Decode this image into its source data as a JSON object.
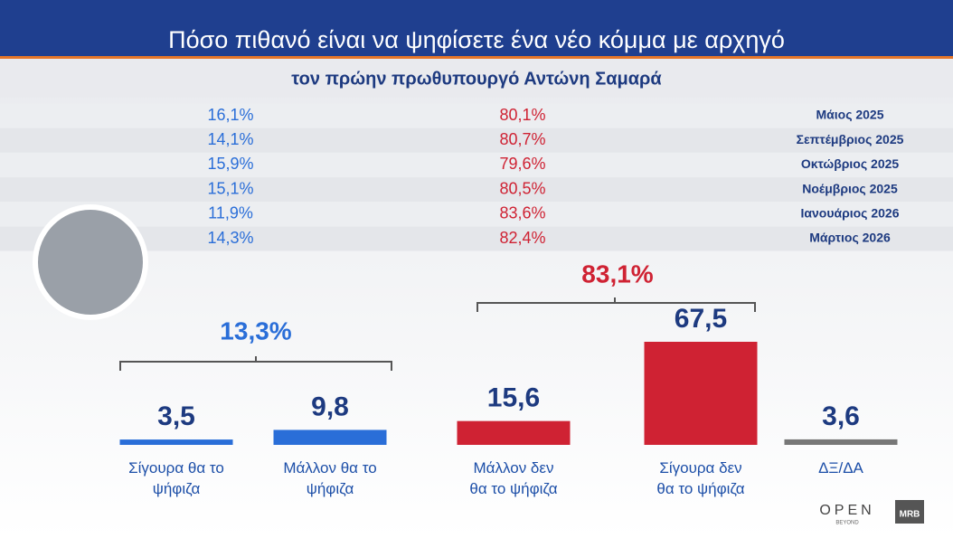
{
  "header": {
    "title": "Πόσο πιθανό είναι να ψηφίσετε ένα νέο κόμμα με αρχηγό",
    "subtitle": "τον πρώην πρωθυπουργό Αντώνη Σαμαρά"
  },
  "history": {
    "rows": [
      [
        "16,1%",
        "80,1%",
        "Μάιος 2025"
      ],
      [
        "14,1%",
        "80,7%",
        "Σεπτέμβριος 2025"
      ],
      [
        "15,9%",
        "79,6%",
        "Οκτώβριος 2025"
      ],
      [
        "15,1%",
        "80,5%",
        "Νοέμβριος 2025"
      ],
      [
        "11,9%",
        "83,6%",
        "Ιανουάριος 2026"
      ],
      [
        "14,3%",
        "82,4%",
        "Μάρτιος 2026"
      ]
    ]
  },
  "chart_data": {
    "type": "bar",
    "categories": [
      "Σίγουρα θα το\nψήφιζα",
      "Μάλλον θα το\nψήφιζα",
      "Μάλλον δεν\nθα το ψήφιζα",
      "Σίγουρα δεν\nθα το ψήφιζα",
      "ΔΞ/ΔΑ"
    ],
    "values": [
      3.5,
      9.8,
      15.6,
      67.5,
      3.6
    ],
    "value_labels": [
      "3,5",
      "9,8",
      "15,6",
      "67,5",
      "3,6"
    ],
    "colors": [
      "#2a6ed8",
      "#2a6ed8",
      "#cf2233",
      "#cf2233",
      "#777777"
    ],
    "annotations": [
      "13,3%",
      "83,1%"
    ]
  },
  "logos": {
    "open": "OPEN",
    "beyond": "BEYOND",
    "mrb": "MRB"
  }
}
